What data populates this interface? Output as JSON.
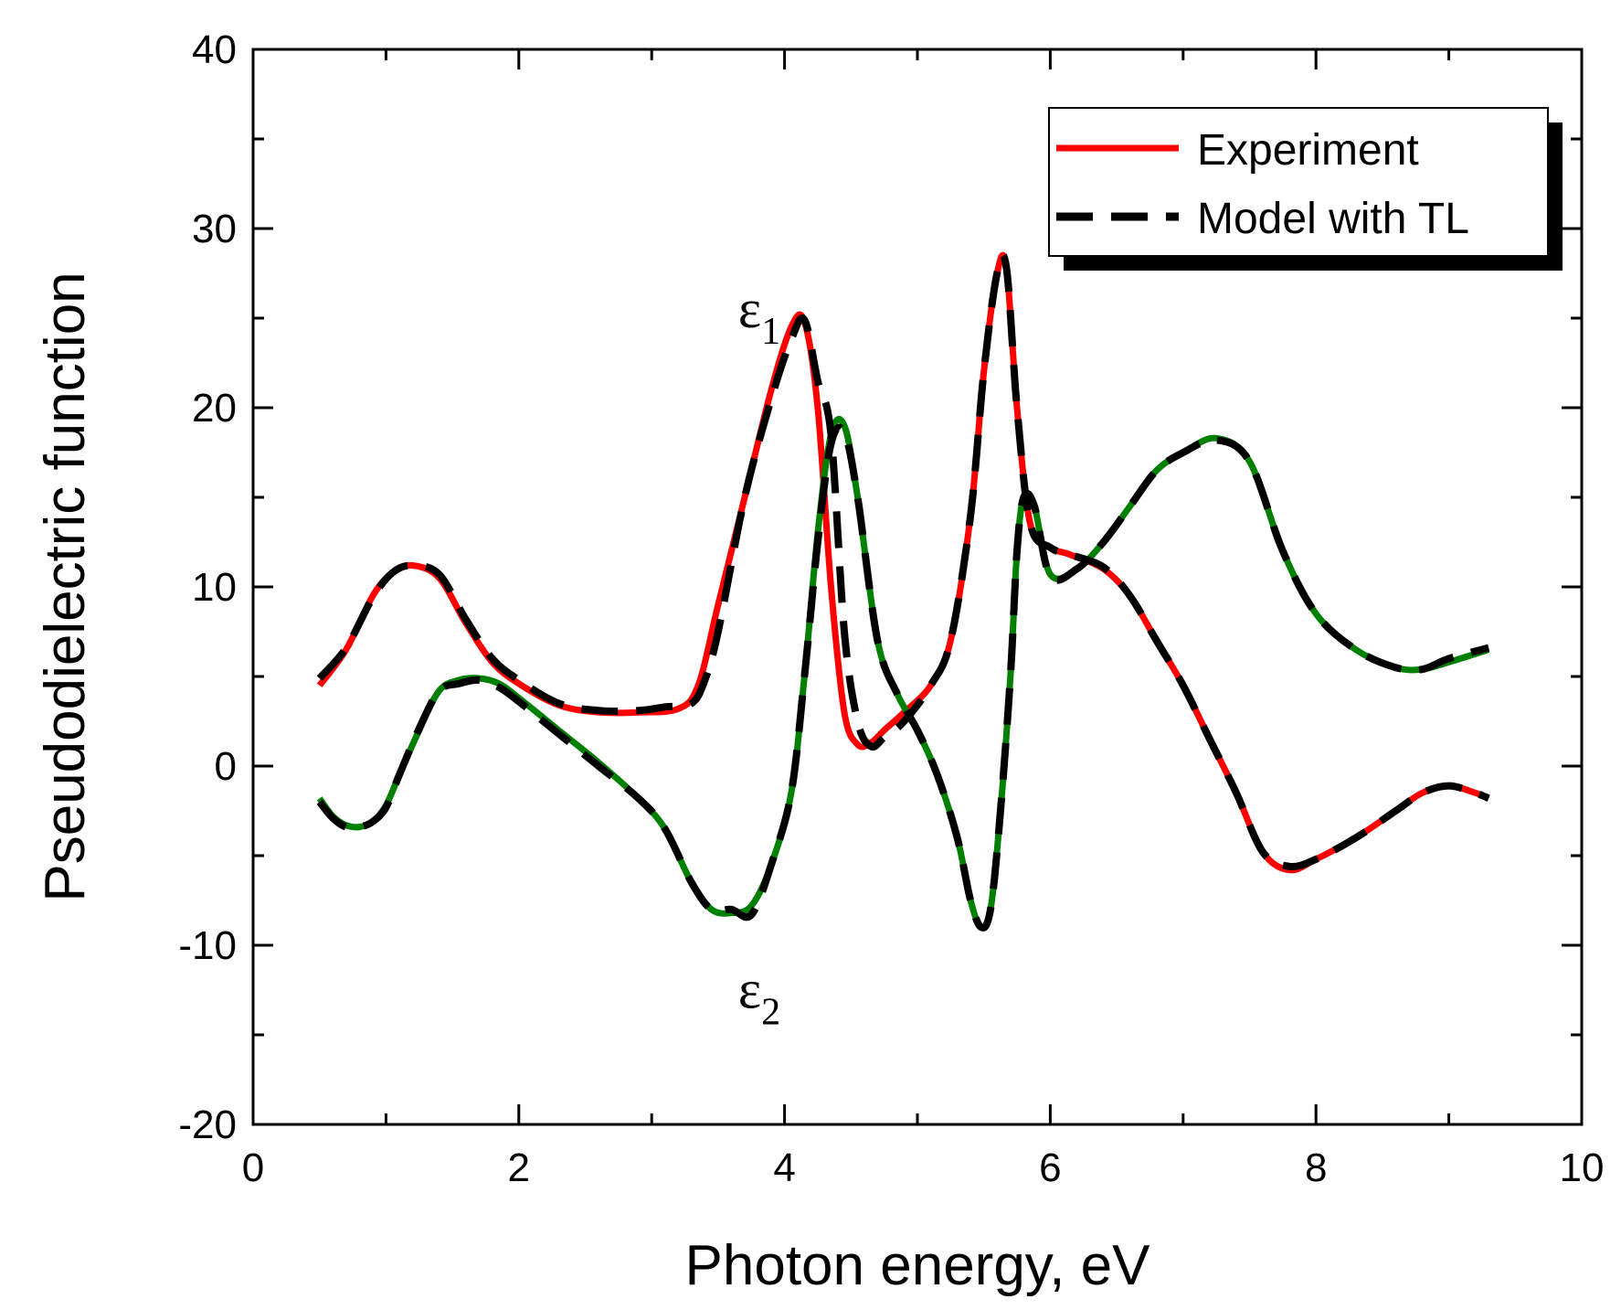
{
  "chart_data": {
    "type": "line",
    "title": "",
    "xlabel": "Photon energy, eV",
    "ylabel": "Pseudodielectric function",
    "xlim": [
      0,
      10
    ],
    "ylim": [
      -20,
      40
    ],
    "x_major_ticks": [
      0,
      2,
      4,
      6,
      8,
      10
    ],
    "x_tick_labels": [
      "0",
      "2",
      "4",
      "6",
      "8",
      "10"
    ],
    "y_major_ticks": [
      -20,
      -10,
      0,
      10,
      20,
      30,
      40
    ],
    "y_tick_labels": [
      "-20",
      "-10",
      "0",
      "10",
      "20",
      "30",
      "40"
    ],
    "x_minor_step": 1,
    "y_minor_step": 5,
    "grid": false,
    "legend_position": "top-right",
    "legend": [
      {
        "label": "Experiment",
        "style": "solid",
        "color": "#ff0000"
      },
      {
        "label": "Model with TL",
        "style": "dashed",
        "color": "#000000"
      }
    ],
    "annotations": [
      {
        "symbol": "ε",
        "subscript": "1",
        "x": 4.05,
        "y": 24.5
      },
      {
        "symbol": "ε",
        "subscript": "2",
        "x": 4.05,
        "y": -13.5
      }
    ],
    "series": [
      {
        "name": "ε1 Experiment",
        "color": "#ff0000",
        "style": "solid",
        "x": [
          0.5,
          0.7,
          0.9,
          1.05,
          1.2,
          1.4,
          1.6,
          1.8,
          2.0,
          2.3,
          2.6,
          2.9,
          3.2,
          3.35,
          3.5,
          3.7,
          3.9,
          4.05,
          4.15,
          4.25,
          4.35,
          4.45,
          4.55,
          4.65,
          4.75,
          4.9,
          5.1,
          5.25,
          5.4,
          5.5,
          5.6,
          5.67,
          5.75,
          5.85,
          6.0,
          6.15,
          6.4,
          6.6,
          6.8,
          7.0,
          7.2,
          7.4,
          7.6,
          7.8,
          8.0,
          8.3,
          8.6,
          8.8,
          9.0,
          9.2,
          9.3
        ],
        "y": [
          4.5,
          6.5,
          9.5,
          10.8,
          11.2,
          10.5,
          8.0,
          5.8,
          4.6,
          3.4,
          3.0,
          3.0,
          3.2,
          4.5,
          9.0,
          15.0,
          21.0,
          24.5,
          24.8,
          20.0,
          10.0,
          3.0,
          1.2,
          1.3,
          2.0,
          3.0,
          4.5,
          7.0,
          14.0,
          22.0,
          27.5,
          27.8,
          20.0,
          13.5,
          12.2,
          11.8,
          11.0,
          9.5,
          7.0,
          4.5,
          1.5,
          -1.5,
          -4.8,
          -5.8,
          -5.2,
          -4.0,
          -2.5,
          -1.5,
          -1.1,
          -1.5,
          -1.8
        ]
      },
      {
        "name": "ε2 Experiment",
        "color": "#008000",
        "style": "solid",
        "x": [
          0.5,
          0.6,
          0.7,
          0.8,
          0.9,
          1.0,
          1.1,
          1.25,
          1.4,
          1.55,
          1.7,
          1.85,
          2.0,
          2.3,
          2.6,
          2.9,
          3.1,
          3.3,
          3.45,
          3.6,
          3.75,
          3.9,
          4.05,
          4.15,
          4.25,
          4.35,
          4.45,
          4.55,
          4.7,
          4.85,
          5.0,
          5.15,
          5.3,
          5.4,
          5.48,
          5.55,
          5.62,
          5.7,
          5.75,
          5.8,
          5.88,
          6.0,
          6.2,
          6.4,
          6.6,
          6.8,
          7.0,
          7.25,
          7.5,
          7.75,
          8.0,
          8.3,
          8.6,
          8.8,
          9.0,
          9.3
        ],
        "y": [
          -1.8,
          -2.8,
          -3.3,
          -3.4,
          -3.1,
          -2.2,
          -0.5,
          2.0,
          4.2,
          4.8,
          4.9,
          4.6,
          3.8,
          2.0,
          0.2,
          -1.8,
          -3.5,
          -6.5,
          -8.0,
          -8.2,
          -7.8,
          -5.5,
          -1.5,
          5.0,
          13.0,
          18.5,
          19.0,
          15.0,
          7.0,
          4.0,
          2.0,
          -0.5,
          -4.0,
          -7.5,
          -9.0,
          -8.0,
          -3.0,
          5.0,
          12.0,
          15.0,
          14.5,
          10.7,
          11.0,
          12.5,
          14.5,
          16.5,
          17.5,
          18.3,
          17.0,
          12.0,
          8.5,
          6.5,
          5.5,
          5.4,
          5.8,
          6.5
        ]
      },
      {
        "name": "ε1 Model with TL",
        "color": "#000000",
        "style": "dashed",
        "x": [
          0.5,
          0.7,
          0.9,
          1.05,
          1.2,
          1.4,
          1.6,
          1.8,
          2.0,
          2.3,
          2.6,
          2.9,
          3.1,
          3.3,
          3.4,
          3.5,
          3.7,
          3.9,
          4.05,
          4.15,
          4.25,
          4.35,
          4.45,
          4.55,
          4.65,
          4.75,
          4.9,
          5.1,
          5.25,
          5.4,
          5.5,
          5.6,
          5.67,
          5.75,
          5.85,
          6.0,
          6.15,
          6.4,
          6.6,
          6.8,
          7.0,
          7.2,
          7.4,
          7.6,
          7.8,
          8.0,
          8.3,
          8.6,
          8.8,
          9.0,
          9.2,
          9.3
        ],
        "y": [
          4.9,
          6.6,
          9.4,
          10.8,
          11.2,
          10.7,
          8.2,
          6.0,
          4.8,
          3.5,
          3.1,
          3.1,
          3.3,
          3.5,
          4.8,
          7.5,
          15.0,
          20.5,
          23.8,
          24.9,
          21.5,
          18.5,
          7.5,
          2.5,
          1.1,
          1.6,
          2.5,
          4.5,
          7.0,
          14.0,
          22.0,
          27.5,
          27.8,
          20.0,
          13.5,
          12.2,
          11.8,
          11.1,
          9.5,
          7.0,
          4.5,
          1.5,
          -1.5,
          -4.8,
          -5.6,
          -5.2,
          -4.0,
          -2.5,
          -1.5,
          -1.1,
          -1.5,
          -1.8
        ]
      },
      {
        "name": "ε2 Model with TL",
        "color": "#000000",
        "style": "dashed",
        "x": [
          0.5,
          0.6,
          0.7,
          0.8,
          0.9,
          1.0,
          1.1,
          1.25,
          1.4,
          1.55,
          1.7,
          1.85,
          2.0,
          2.3,
          2.6,
          2.9,
          3.1,
          3.3,
          3.45,
          3.6,
          3.75,
          3.9,
          4.05,
          4.15,
          4.25,
          4.35,
          4.45,
          4.55,
          4.7,
          4.85,
          5.0,
          5.15,
          5.3,
          5.4,
          5.48,
          5.55,
          5.62,
          5.7,
          5.75,
          5.8,
          5.88,
          6.0,
          6.2,
          6.4,
          6.6,
          6.8,
          7.0,
          7.25,
          7.5,
          7.75,
          8.0,
          8.3,
          8.6,
          8.8,
          9.0,
          9.3
        ],
        "y": [
          -2.0,
          -2.9,
          -3.4,
          -3.4,
          -3.1,
          -2.3,
          -0.5,
          2.1,
          4.2,
          4.6,
          4.8,
          4.4,
          3.6,
          1.8,
          0.0,
          -1.8,
          -3.5,
          -6.5,
          -8.0,
          -8.0,
          -8.3,
          -5.5,
          -1.5,
          5.0,
          12.5,
          18.0,
          18.6,
          15.0,
          7.0,
          4.0,
          2.0,
          -0.5,
          -4.0,
          -7.5,
          -9.0,
          -8.0,
          -3.0,
          5.0,
          12.0,
          15.0,
          14.5,
          10.6,
          11.0,
          12.5,
          14.5,
          16.5,
          17.5,
          18.2,
          17.0,
          12.0,
          8.5,
          6.5,
          5.5,
          5.4,
          6.0,
          6.6
        ]
      }
    ]
  }
}
